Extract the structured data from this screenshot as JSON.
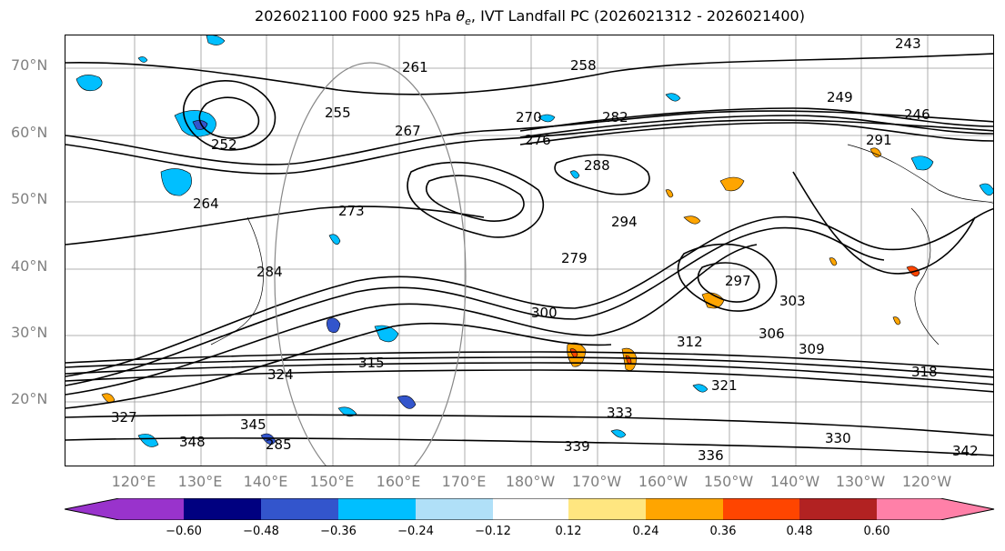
{
  "title_main": "2026021100 F000 925 hPa ",
  "title_symbol": "θ",
  "title_subscript": "e",
  "title_rest": ", IVT Landfall PC (2026021312 - 2026021400)",
  "lat_labels": [
    "70°N",
    "60°N",
    "50°N",
    "40°N",
    "30°N",
    "20°N"
  ],
  "lon_labels": [
    "120°E",
    "130°E",
    "140°E",
    "150°E",
    "160°E",
    "170°E",
    "180°W",
    "170°W",
    "160°W",
    "150°W",
    "140°W",
    "130°W",
    "120°W"
  ],
  "contour_labels": [
    "243",
    "249",
    "246",
    "252",
    "255",
    "258",
    "261",
    "264",
    "267",
    "270",
    "273",
    "276",
    "279",
    "282",
    "284",
    "285",
    "288",
    "291",
    "294",
    "297",
    "300",
    "303",
    "306",
    "309",
    "312",
    "315",
    "318",
    "321",
    "324",
    "327",
    "330",
    "333",
    "336",
    "339",
    "342",
    "345",
    "348"
  ],
  "colorbar": {
    "tick_labels": [
      "−0.60",
      "−0.48",
      "−0.36",
      "−0.24",
      "−0.12",
      "0.12",
      "0.24",
      "0.36",
      "0.48",
      "0.60"
    ],
    "colors": [
      "#9933cc",
      "#000080",
      "#3355cc",
      "#00bfff",
      "#b0e0f8",
      "#ffffff",
      "#ffe680",
      "#ffa500",
      "#ff4500",
      "#b22222",
      "#ff80a8"
    ]
  }
}
